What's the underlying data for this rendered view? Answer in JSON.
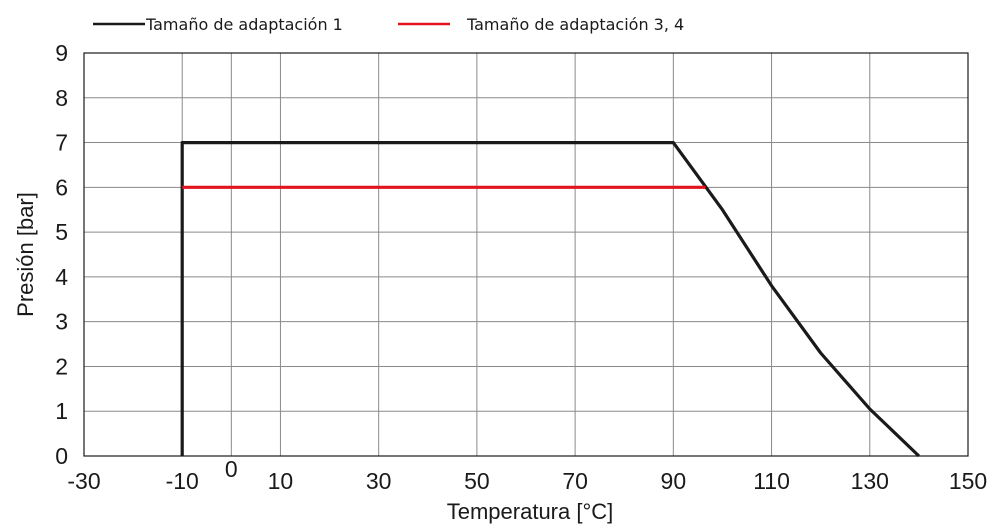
{
  "chart_data": {
    "type": "line",
    "xlabel": "Temperatura [°C]",
    "ylabel": "Presión [bar]",
    "xlim": [
      -30,
      150
    ],
    "ylim": [
      0,
      9
    ],
    "x_ticks": [
      -30,
      -10,
      0,
      10,
      30,
      50,
      70,
      90,
      110,
      130,
      150
    ],
    "y_ticks": [
      0,
      1,
      2,
      3,
      4,
      5,
      6,
      7,
      8,
      9
    ],
    "x_grid": [
      -30,
      -10,
      0,
      10,
      30,
      50,
      70,
      90,
      110,
      130,
      150
    ],
    "grid": true,
    "legend_position": "top",
    "series": [
      {
        "name": "Tamaño de adaptación 1",
        "color": "#1a1a1a",
        "points": [
          [
            -10,
            0
          ],
          [
            -10,
            7
          ],
          [
            90,
            7
          ],
          [
            100,
            5.5
          ],
          [
            110,
            3.8
          ],
          [
            120,
            2.3
          ],
          [
            130,
            1.05
          ],
          [
            140,
            0
          ]
        ]
      },
      {
        "name": "Tamaño de adaptación 3, 4",
        "color": "#e3141e",
        "points": [
          [
            -10,
            6
          ],
          [
            96.5,
            6
          ]
        ]
      }
    ]
  }
}
